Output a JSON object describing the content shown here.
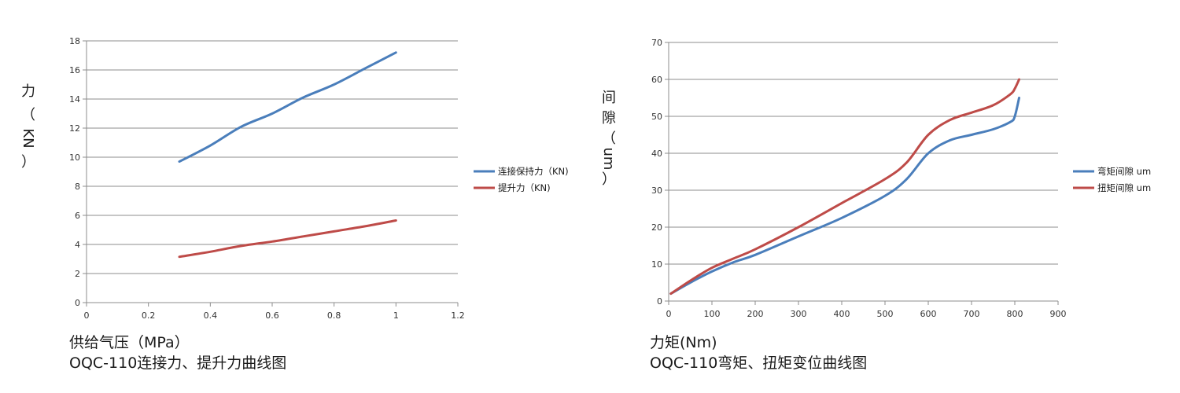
{
  "chart_data": [
    {
      "type": "line",
      "xlabel": "供给气压（MPa）",
      "ylabel": "力（KN）",
      "title": "OQC-110连接力、提升力曲线图",
      "xlim": [
        0,
        1.2
      ],
      "ylim": [
        0,
        18
      ],
      "x_ticks": [
        0,
        0.2,
        0.4,
        0.6,
        0.8,
        1,
        1.2
      ],
      "y_ticks": [
        0,
        2,
        4,
        6,
        8,
        10,
        12,
        14,
        16,
        18
      ],
      "grid": "horizontal",
      "legend_position": "right",
      "series": [
        {
          "name": "连接保持力（KN)",
          "color": "#4a7ebb",
          "x": [
            0.3,
            0.4,
            0.5,
            0.6,
            0.7,
            0.8,
            0.9,
            1.0
          ],
          "y": [
            9.7,
            10.8,
            12.1,
            13.0,
            14.1,
            15.0,
            16.1,
            17.2
          ]
        },
        {
          "name": "提升力（KN)",
          "color": "#be4b48",
          "x": [
            0.3,
            0.4,
            0.5,
            0.6,
            0.7,
            0.8,
            0.9,
            1.0
          ],
          "y": [
            3.15,
            3.5,
            3.9,
            4.2,
            4.55,
            4.9,
            5.25,
            5.65
          ]
        }
      ]
    },
    {
      "type": "line",
      "xlabel": "力矩(Nm)",
      "ylabel": "间隙（um）",
      "title": "OQC-110弯矩、扭矩变位曲线图",
      "xlim": [
        0,
        900
      ],
      "ylim": [
        0,
        70
      ],
      "x_ticks": [
        0,
        100,
        200,
        300,
        400,
        500,
        600,
        700,
        800,
        900
      ],
      "y_ticks": [
        0,
        10,
        20,
        30,
        40,
        50,
        60,
        70
      ],
      "grid": "horizontal",
      "legend_position": "right",
      "series": [
        {
          "name": "弯矩间隙 um",
          "color": "#4a7ebb",
          "x": [
            5,
            50,
            100,
            150,
            200,
            300,
            400,
            500,
            550,
            600,
            650,
            700,
            750,
            790,
            800,
            810
          ],
          "y": [
            2,
            5,
            8,
            10.5,
            12.5,
            17.5,
            22.5,
            28.5,
            33,
            40,
            43.5,
            45,
            46.5,
            48.5,
            50,
            55
          ]
        },
        {
          "name": "扭矩间隙 um",
          "color": "#be4b48",
          "x": [
            5,
            50,
            100,
            150,
            200,
            300,
            400,
            500,
            550,
            600,
            650,
            700,
            750,
            790,
            800,
            810
          ],
          "y": [
            2,
            5.5,
            9,
            11.5,
            14,
            20,
            26.5,
            33,
            37.5,
            45,
            49,
            51,
            53,
            56,
            57.5,
            60
          ]
        }
      ]
    }
  ],
  "left_chart": {
    "y_title_chars": [
      "力",
      "（",
      "KN",
      "）"
    ],
    "x_title": "供给气压（MPa）",
    "caption": "OQC-110连接力、提升力曲线图"
  },
  "right_chart": {
    "y_title_chars": [
      "间",
      "隙",
      "（",
      "um",
      "）"
    ],
    "x_title": "力矩(Nm)",
    "caption": "OQC-110弯矩、扭矩变位曲线图"
  }
}
